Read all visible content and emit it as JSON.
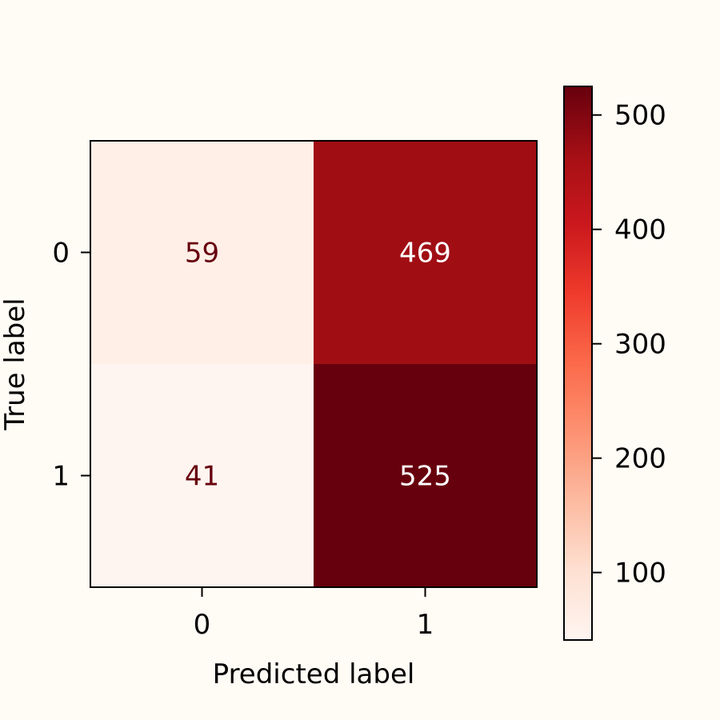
{
  "colors": {
    "background": "#fffbf5",
    "frame": "#000000",
    "text": "#000000",
    "light_cell_text": "#67000d",
    "dark_cell_text": "#ffffff",
    "colormap": "Reds"
  },
  "chart_data": {
    "type": "heatmap",
    "title": "",
    "xlabel": "Predicted label",
    "ylabel": "True label",
    "x_categories": [
      "0",
      "1"
    ],
    "y_categories": [
      "0",
      "1"
    ],
    "values": [
      [
        59,
        469
      ],
      [
        41,
        525
      ]
    ],
    "cell_labels": [
      [
        "59",
        "469"
      ],
      [
        "41",
        "525"
      ]
    ],
    "colorbar": {
      "vmin": 41,
      "vmax": 525,
      "ticks": [
        100,
        200,
        300,
        400,
        500
      ],
      "tick_labels": [
        "100",
        "200",
        "300",
        "400",
        "500"
      ]
    }
  }
}
